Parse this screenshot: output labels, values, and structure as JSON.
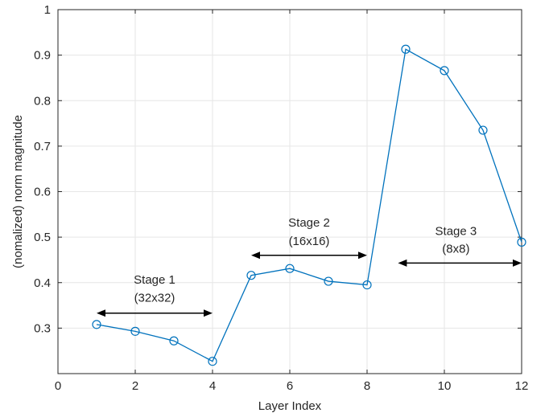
{
  "chart_data": {
    "type": "line",
    "title": "",
    "xlabel": "Layer Index",
    "ylabel": "(nomalized) norm magnitude",
    "xlim": [
      0,
      12
    ],
    "ylim": [
      0.2,
      1
    ],
    "xticks": [
      0,
      2,
      4,
      6,
      8,
      10,
      12
    ],
    "xtick_labels": [
      "0",
      "2",
      "4",
      "6",
      "8",
      "10",
      "12"
    ],
    "yticks": [
      0.3,
      0.4,
      0.5,
      0.6,
      0.7,
      0.8,
      0.9,
      1
    ],
    "ytick_labels": [
      "0.3",
      "0.4",
      "0.5",
      "0.6",
      "0.7",
      "0.8",
      "0.9",
      "1"
    ],
    "grid": true,
    "colors": {
      "series": "#0072BD",
      "arrow": "#000000",
      "grid": "#e6e6e6",
      "axis": "#262626"
    },
    "series": [
      {
        "marker": "circle",
        "x": [
          1,
          2,
          3,
          4,
          5,
          6,
          7,
          8,
          9,
          10,
          11,
          12
        ],
        "y": [
          0.308,
          0.293,
          0.272,
          0.227,
          0.416,
          0.431,
          0.403,
          0.395,
          0.913,
          0.866,
          0.735,
          0.489
        ]
      }
    ],
    "annotations": [
      {
        "label_line1": "Stage 1",
        "label_line2": "(32x32)",
        "arrow_x": [
          1,
          4
        ],
        "arrow_y": 0.333,
        "text_x": 2.5,
        "text_y1": 0.398,
        "text_y2": 0.358
      },
      {
        "label_line1": "Stage 2",
        "label_line2": "(16x16)",
        "arrow_x": [
          5,
          8
        ],
        "arrow_y": 0.46,
        "text_x": 6.5,
        "text_y1": 0.523,
        "text_y2": 0.483
      },
      {
        "label_line1": "Stage 3",
        "label_line2": "(8x8)",
        "arrow_x": [
          8.8,
          12
        ],
        "arrow_y": 0.443,
        "text_x": 10.3,
        "text_y1": 0.505,
        "text_y2": 0.466
      }
    ]
  }
}
